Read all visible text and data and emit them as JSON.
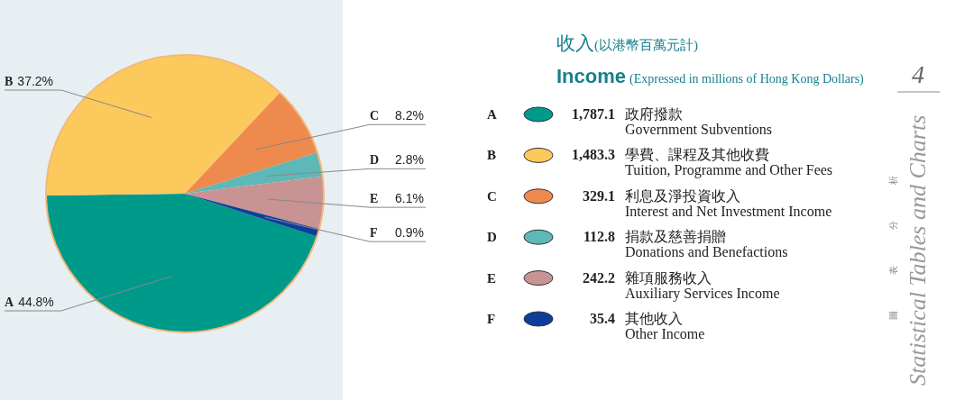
{
  "chart_data": {
    "type": "pie",
    "title": "收入(以港幣百萬元計)",
    "subtitle": "Income (Expressed in millions of Hong Kong Dollars)",
    "categories": [
      "A",
      "B",
      "C",
      "D",
      "E",
      "F"
    ],
    "values": [
      44.8,
      37.2,
      8.2,
      2.8,
      6.1,
      0.9
    ],
    "colors": [
      "#009a8a",
      "#fcc95c",
      "#ef8a4e",
      "#5fb8b8",
      "#c99393",
      "#0d3f9a"
    ],
    "value_labels": [
      "44.8%",
      "37.2%",
      "8.2%",
      "2.8%",
      "6.1%",
      "0.9%"
    ],
    "legend": "right",
    "annotations": [
      "1,787.1",
      "政府撥款",
      "Government Subventions",
      "1,483.3",
      "學費、課程及其他收費",
      "Tuition, Programme and Other Fees",
      "329.1",
      "利息及淨投資收入",
      "Interest and Net Investment Income",
      "112.8",
      "捐款及慈善捐贈",
      "Donations and Benefactions",
      "242.2",
      "雜項服務收入",
      "Auxiliary Services Income",
      "35.4",
      "其他收入",
      "Other Income",
      "4",
      "Statistical Tables and Charts",
      "圖表分析"
    ]
  }
}
